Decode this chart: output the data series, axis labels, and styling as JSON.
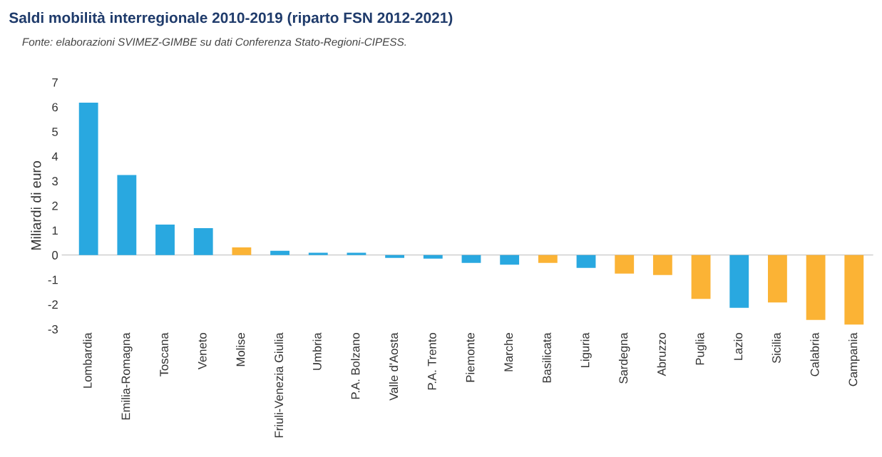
{
  "chart_data": {
    "type": "bar",
    "title": "Saldi mobilità interregionale 2010-2019 (riparto FSN 2012-2021)",
    "subtitle": "Fonte: elaborazioni SVIMEZ-GIMBE su dati Conferenza Stato-Regioni-CIPESS.",
    "ylabel": "Miliardi di euro",
    "categories": [
      "Lombardia",
      "Emilia-Romagna",
      "Toscana",
      "Veneto",
      "Molise",
      "Friuli-Venezia Giulia",
      "Umbria",
      "P.A. Bolzano",
      "Valle d'Aosta",
      "P.A. Trento",
      "Piemonte",
      "Marche",
      "Basilicata",
      "Liguria",
      "Sardegna",
      "Abruzzo",
      "Puglia",
      "Lazio",
      "Sicilia",
      "Calabria",
      "Campania"
    ],
    "values": [
      6.17,
      3.24,
      1.23,
      1.09,
      0.31,
      0.17,
      0.09,
      0.09,
      -0.12,
      -0.15,
      -0.32,
      -0.39,
      -0.32,
      -0.52,
      -0.75,
      -0.81,
      -1.78,
      -2.14,
      -1.92,
      -2.63,
      -2.82
    ],
    "colors": [
      "#29a8e0",
      "#29a8e0",
      "#29a8e0",
      "#29a8e0",
      "#fbb335",
      "#29a8e0",
      "#29a8e0",
      "#29a8e0",
      "#29a8e0",
      "#29a8e0",
      "#29a8e0",
      "#29a8e0",
      "#fbb335",
      "#29a8e0",
      "#fbb335",
      "#fbb335",
      "#fbb335",
      "#29a8e0",
      "#fbb335",
      "#fbb335",
      "#fbb335"
    ],
    "ylim": [
      -3,
      7
    ],
    "yticks": [
      -3,
      -2,
      -1,
      0,
      1,
      2,
      3,
      4,
      5,
      6,
      7
    ],
    "ref_lines": [
      {
        "axis": "y",
        "value": 0,
        "color": "#c8c8c8"
      }
    ]
  }
}
